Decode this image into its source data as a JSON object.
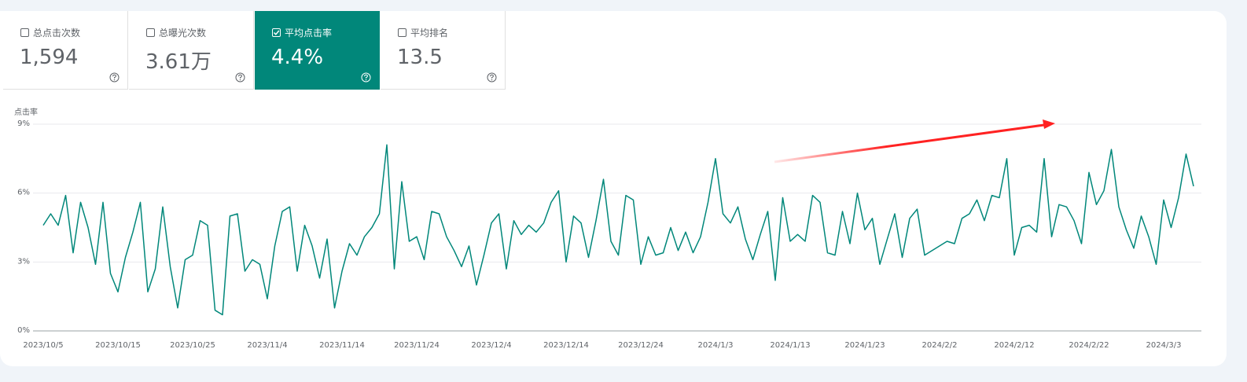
{
  "metrics": [
    {
      "label": "总点击次数",
      "value": "1,594",
      "selected": false
    },
    {
      "label": "总曝光次数",
      "value": "3.61万",
      "selected": false
    },
    {
      "label": "平均点击率",
      "value": "4.4%",
      "selected": true
    },
    {
      "label": "平均排名",
      "value": "13.5",
      "selected": false
    }
  ],
  "chart_data": {
    "type": "line",
    "y_label": "点击率",
    "categories": [
      "2023/10/5",
      null,
      null,
      null,
      null,
      null,
      null,
      null,
      null,
      null,
      "2023/10/15",
      null,
      null,
      null,
      null,
      null,
      null,
      null,
      null,
      null,
      "2023/10/25",
      null,
      null,
      null,
      null,
      null,
      null,
      null,
      null,
      null,
      "2023/11/4",
      null,
      null,
      null,
      null,
      null,
      null,
      null,
      null,
      null,
      "2023/11/14",
      null,
      null,
      null,
      null,
      null,
      null,
      null,
      null,
      null,
      "2023/11/24",
      null,
      null,
      null,
      null,
      null,
      null,
      null,
      null,
      null,
      "2023/12/4",
      null,
      null,
      null,
      null,
      null,
      null,
      null,
      null,
      null,
      "2023/12/14",
      null,
      null,
      null,
      null,
      null,
      null,
      null,
      null,
      null,
      "2023/12/24",
      null,
      null,
      null,
      null,
      null,
      null,
      null,
      null,
      null,
      "2024/1/3",
      null,
      null,
      null,
      null,
      null,
      null,
      null,
      null,
      null,
      "2024/1/13",
      null,
      null,
      null,
      null,
      null,
      null,
      null,
      null,
      null,
      "2024/1/23",
      null,
      null,
      null,
      null,
      null,
      null,
      null,
      null,
      null,
      "2024/2/2",
      null,
      null,
      null,
      null,
      null,
      null,
      null,
      null,
      null,
      "2024/2/12",
      null,
      null,
      null,
      null,
      null,
      null,
      null,
      null,
      null,
      "2024/2/22",
      null,
      null,
      null,
      null,
      null,
      null,
      null,
      null,
      null,
      "2024/3/3",
      null,
      null,
      null,
      null
    ],
    "series": [
      {
        "name": "平均点击率",
        "color": "#01877a",
        "values": [
          4.6,
          5.1,
          4.6,
          5.9,
          3.4,
          5.6,
          4.5,
          2.9,
          5.6,
          2.5,
          1.7,
          3.2,
          4.3,
          5.6,
          1.7,
          2.7,
          5.4,
          2.8,
          1.0,
          3.1,
          3.3,
          4.8,
          4.6,
          0.9,
          0.7,
          5.0,
          5.1,
          2.6,
          3.1,
          2.9,
          1.4,
          3.7,
          5.2,
          5.4,
          2.6,
          4.6,
          3.7,
          2.3,
          4.0,
          1.0,
          2.6,
          3.8,
          3.3,
          4.1,
          4.5,
          5.1,
          8.1,
          2.7,
          6.5,
          3.9,
          4.1,
          3.1,
          5.2,
          5.1,
          4.1,
          3.5,
          2.8,
          3.7,
          2.0,
          3.3,
          4.7,
          5.1,
          2.7,
          4.8,
          4.2,
          4.6,
          4.3,
          4.7,
          5.6,
          6.1,
          3.0,
          5.0,
          4.7,
          3.2,
          4.8,
          6.6,
          3.9,
          3.3,
          5.9,
          5.7,
          2.9,
          4.1,
          3.3,
          3.4,
          4.5,
          3.5,
          4.3,
          3.4,
          4.1,
          5.6,
          7.5,
          5.1,
          4.7,
          5.4,
          4.0,
          3.1,
          4.2,
          5.2,
          2.2,
          5.8,
          3.9,
          4.2,
          3.9,
          5.9,
          5.6,
          3.4,
          3.3,
          5.2,
          3.8,
          6.0,
          4.4,
          4.9,
          2.9,
          4.0,
          5.1,
          3.2,
          4.9,
          5.3,
          3.3,
          3.5,
          3.7,
          3.9,
          3.8,
          4.9,
          5.1,
          5.7,
          4.8,
          5.9,
          5.8,
          7.5,
          3.3,
          4.5,
          4.6,
          4.3,
          7.5,
          4.1,
          5.5,
          5.4,
          4.8,
          3.8,
          6.9,
          5.5,
          6.1,
          7.9,
          5.4,
          4.4,
          3.6,
          5.0,
          4.1,
          2.9,
          5.7,
          4.5,
          5.8,
          7.7,
          6.3
        ]
      }
    ],
    "ylim": [
      0,
      9
    ],
    "yticks": [
      {
        "value": 0,
        "label": "0%"
      },
      {
        "value": 3,
        "label": "3%"
      },
      {
        "value": 6,
        "label": "6%"
      },
      {
        "value": 9,
        "label": "9%"
      }
    ],
    "grid": true
  }
}
